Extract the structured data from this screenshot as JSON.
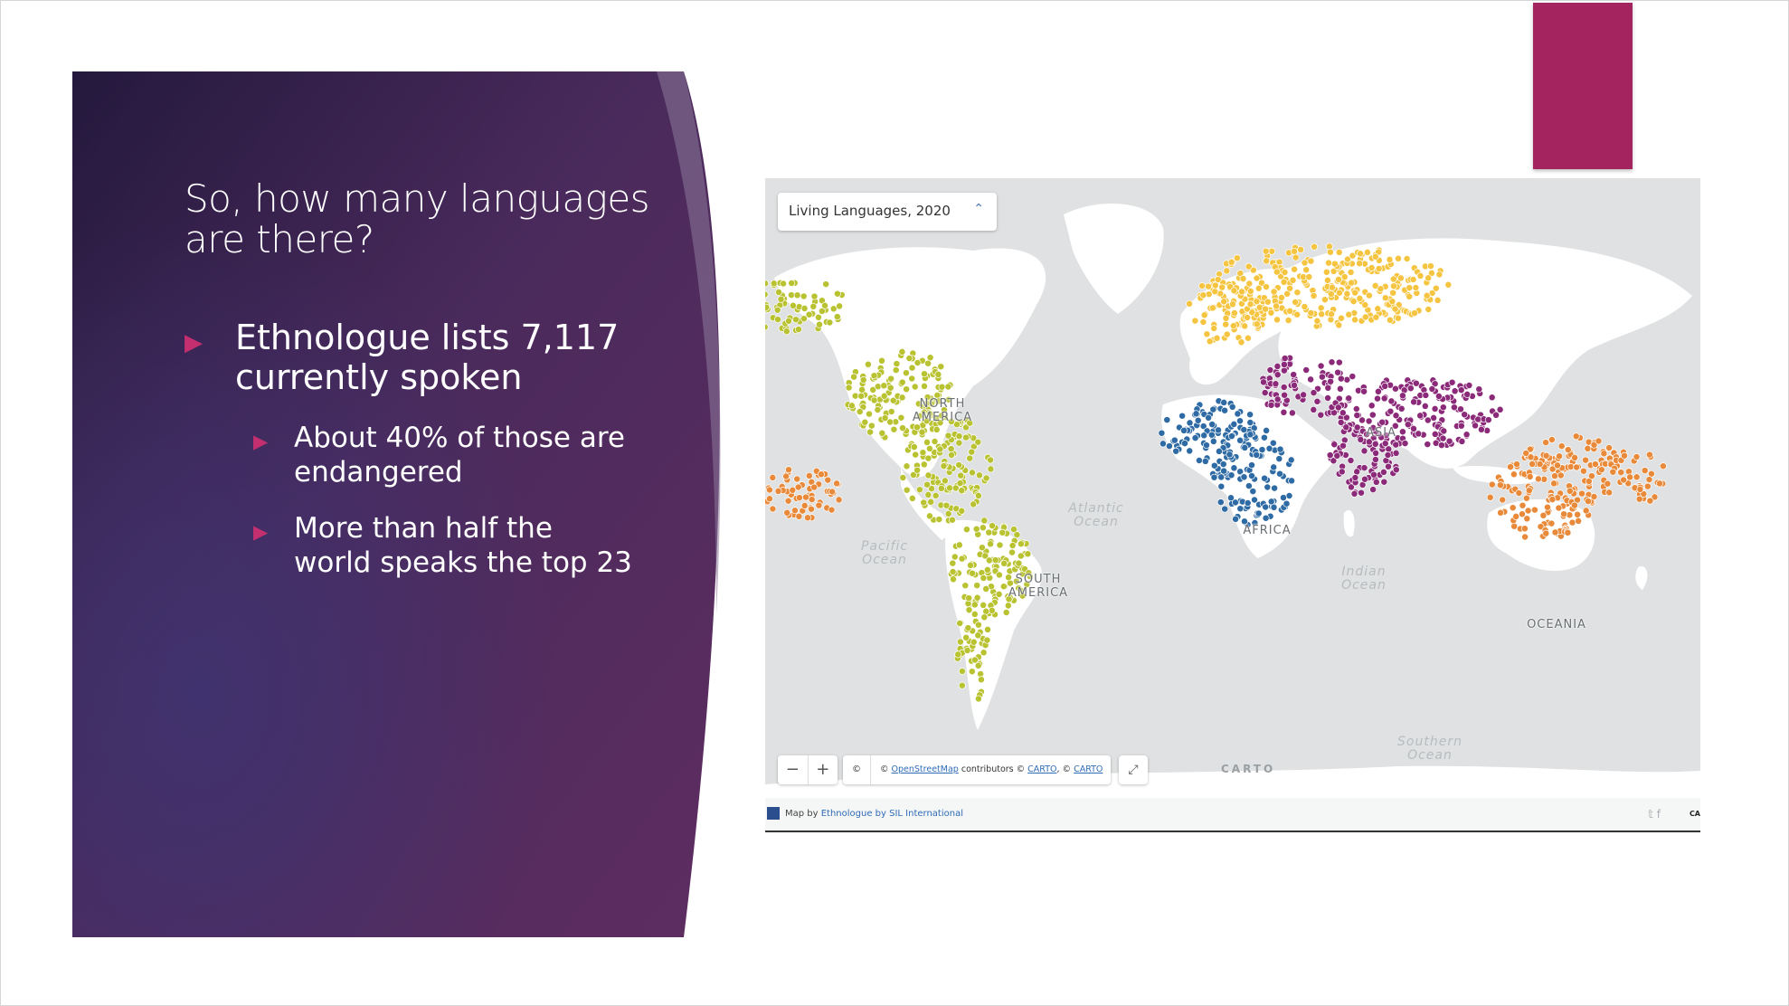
{
  "slide": {
    "title": "So, how many languages are there?",
    "bullets": [
      {
        "text": "Ethnologue lists 7,117 currently spoken",
        "level": 1
      },
      {
        "text": "About 40% of those are endangered",
        "level": 2
      },
      {
        "text": "More than half the world speaks the top 23",
        "level": 2
      }
    ],
    "bullet_glyph": "▶",
    "colors": {
      "accent": "#a3245f",
      "panel_dark": "#2a1d44",
      "panel_light": "#5d2f63"
    }
  },
  "map": {
    "layer_select": {
      "label": "Living Languages, 2020",
      "icon": "chevron-up-icon"
    },
    "oceans": [
      {
        "id": "pacific",
        "label": "Pacific\nOcean"
      },
      {
        "id": "atlantic",
        "label": "Atlantic\nOcean"
      },
      {
        "id": "indian",
        "label": "Indian\nOcean"
      },
      {
        "id": "southern",
        "label": "Southern\nOcean"
      }
    ],
    "continents": [
      {
        "id": "north-america",
        "label": "NORTH\nAMERICA"
      },
      {
        "id": "south-america",
        "label": "SOUTH\nAMERICA"
      },
      {
        "id": "africa",
        "label": "AFRICA"
      },
      {
        "id": "asia",
        "label": "ASIA"
      },
      {
        "id": "oceania",
        "label": "OCEANIA"
      }
    ],
    "region_colors": {
      "americas": "#b9c230",
      "europe": "#f5c542",
      "africa": "#2e6aa3",
      "asia": "#8c2a7a",
      "pacific": "#e98a3a"
    },
    "controls": {
      "zoom_out": "−",
      "zoom_in": "+",
      "fullscreen_icon": "expand-icon"
    },
    "attribution": {
      "copyright": "©",
      "prefix": "© ",
      "osm": "OpenStreetMap",
      "middle": " contributors © ",
      "carto1": "CARTO",
      "sep": ", © ",
      "carto2": "CARTO"
    },
    "carto_logo": "CARTO",
    "footer": {
      "prefix": "Map by ",
      "link": "Ethnologue by SIL International",
      "social": "𝕥  f",
      "edge": "CA"
    }
  }
}
